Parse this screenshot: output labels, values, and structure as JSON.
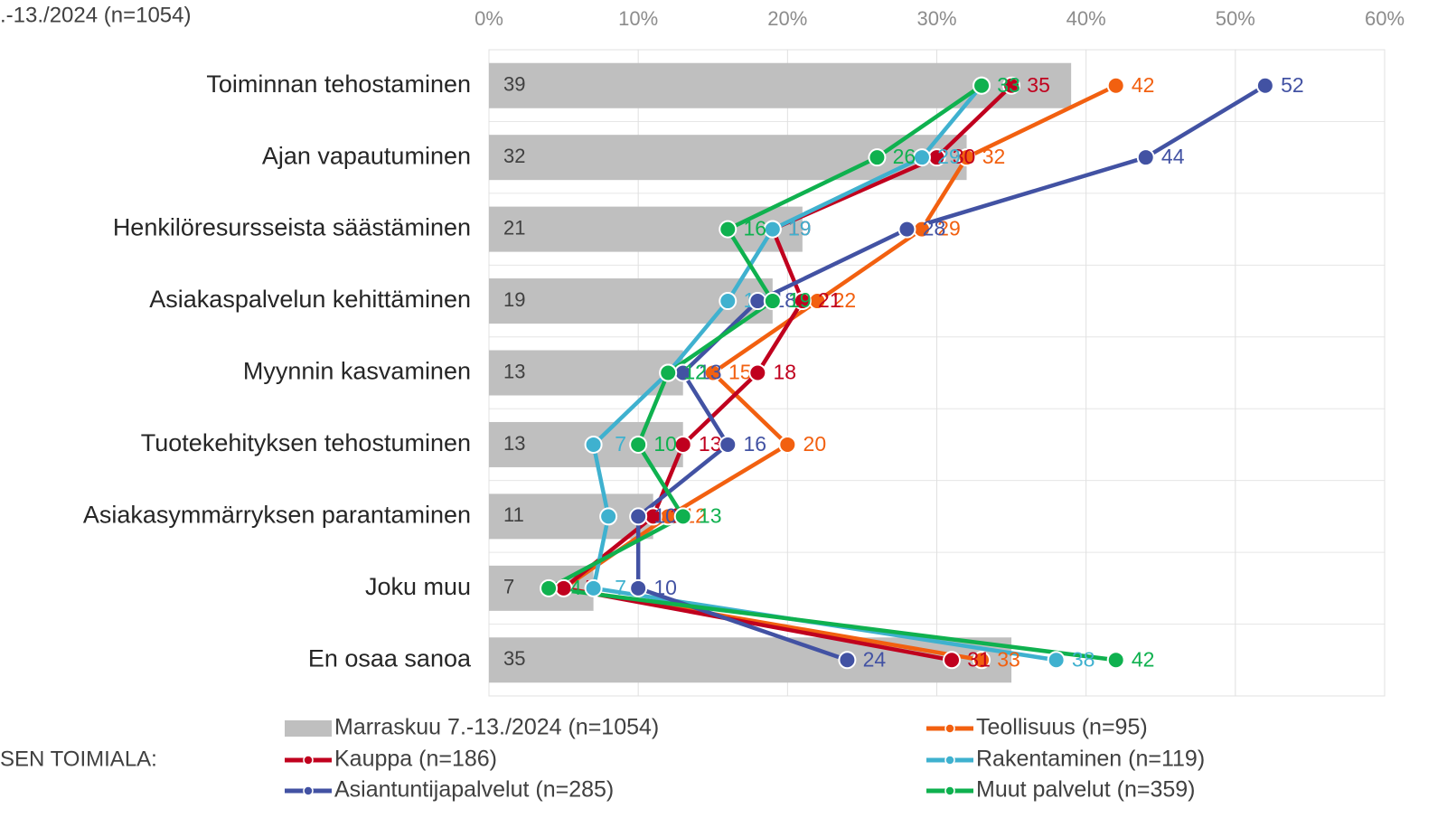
{
  "chart_data": {
    "type": "combo",
    "title": ".-13./2024 (n=1054)",
    "legend_title": "SEN TOIMIALA:",
    "categories": [
      "Toiminnan tehostaminen",
      "Ajan vapautuminen",
      "Henkilöresursseista säästäminen",
      "Asiakaspalvelun kehittäminen",
      "Myynnin kasvaminen",
      "Tuotekehityksen tehostuminen",
      "Asiakasymmärryksen parantaminen",
      "Joku muu",
      "En osaa sanoa"
    ],
    "bar_series": {
      "name": "Marraskuu 7.-13./2024 (n=1054)",
      "color": "#bfbfbf",
      "values": [
        39,
        32,
        21,
        19,
        13,
        13,
        11,
        7,
        35
      ]
    },
    "series": [
      {
        "name": "Teollisuus (n=95)",
        "color": "#f26010",
        "values": [
          42,
          32,
          29,
          22,
          15,
          20,
          12,
          5,
          33
        ]
      },
      {
        "name": "Kauppa (n=186)",
        "color": "#c0001e",
        "values": [
          35,
          30,
          19,
          21,
          18,
          13,
          11,
          5,
          31
        ]
      },
      {
        "name": "Rakentaminen (n=119)",
        "color": "#3fb1cf",
        "values": [
          33,
          29,
          19,
          16,
          12,
          7,
          8,
          7,
          38
        ]
      },
      {
        "name": "Asiantuntijapalvelut (n=285)",
        "color": "#4252a3",
        "values": [
          52,
          44,
          28,
          18,
          13,
          16,
          10,
          10,
          24
        ]
      },
      {
        "name": "Muut palvelut (n=359)",
        "color": "#0fb14f",
        "values": [
          33,
          26,
          16,
          19,
          12,
          10,
          13,
          4,
          42
        ]
      }
    ],
    "xlim": [
      0,
      60
    ],
    "xticks": [
      {
        "value": 0,
        "label": "0%"
      },
      {
        "value": 10,
        "label": "10%"
      },
      {
        "value": 20,
        "label": "20%"
      },
      {
        "value": 30,
        "label": "30%"
      },
      {
        "value": 40,
        "label": "40%"
      },
      {
        "value": 50,
        "label": "50%"
      },
      {
        "value": 60,
        "label": "60%"
      }
    ],
    "grid": true
  }
}
